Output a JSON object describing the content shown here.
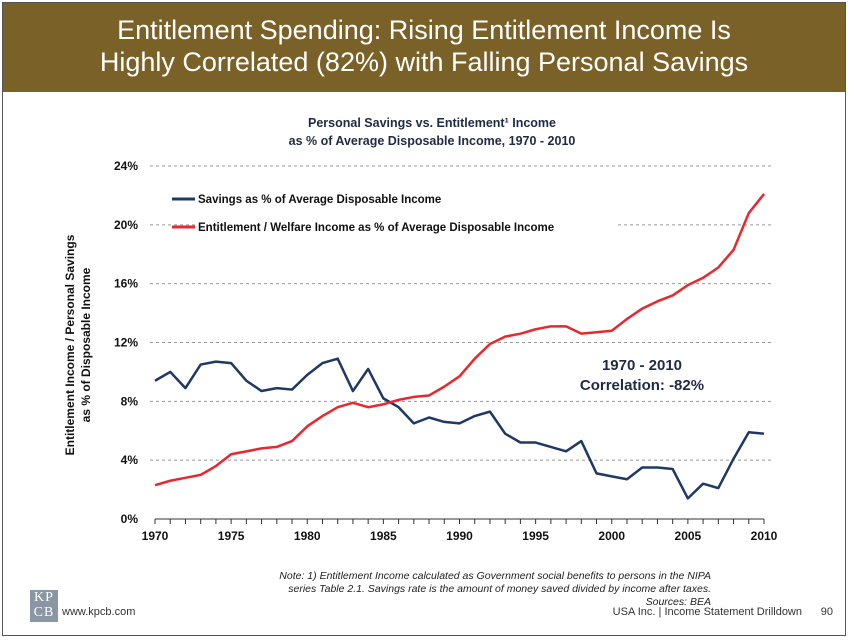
{
  "header": {
    "title_line1": "Entitlement Spending: Rising Entitlement Income Is",
    "title_line2": "Highly Correlated (82%) with Falling Personal Savings"
  },
  "chart_data": {
    "type": "line",
    "title_line1": "Personal Savings vs. Entitlement¹ Income",
    "title_line2": "as % of Average Disposable Income, 1970 - 2010",
    "ylabel_line1": "Entitlement Income / Personal Savings",
    "ylabel_line2": "as % of Disposable Income",
    "xlabel": "",
    "ylim": [
      0,
      24
    ],
    "xlim": [
      1970,
      2010
    ],
    "yticks": [
      0,
      4,
      8,
      12,
      16,
      20,
      24
    ],
    "ytick_labels": [
      "0%",
      "4%",
      "8%",
      "12%",
      "16%",
      "20%",
      "24%"
    ],
    "xticks": [
      1970,
      1975,
      1980,
      1985,
      1990,
      1995,
      2000,
      2005,
      2010
    ],
    "xtick_labels": [
      "1970",
      "1975",
      "1980",
      "1985",
      "1990",
      "1995",
      "2000",
      "2005",
      "2010"
    ],
    "grid": true,
    "legend_position": "top-left",
    "x": [
      1970,
      1971,
      1972,
      1973,
      1974,
      1975,
      1976,
      1977,
      1978,
      1979,
      1980,
      1981,
      1982,
      1983,
      1984,
      1985,
      1986,
      1987,
      1988,
      1989,
      1990,
      1991,
      1992,
      1993,
      1994,
      1995,
      1996,
      1997,
      1998,
      1999,
      2000,
      2001,
      2002,
      2003,
      2004,
      2005,
      2006,
      2007,
      2008,
      2009,
      2010
    ],
    "series": [
      {
        "name": "Savings as % of Average Disposable Income",
        "color": "#1f3864",
        "values": [
          9.4,
          10.0,
          8.9,
          10.5,
          10.7,
          10.6,
          9.4,
          8.7,
          8.9,
          8.8,
          9.8,
          10.6,
          10.9,
          8.7,
          10.2,
          8.2,
          7.6,
          6.5,
          6.9,
          6.6,
          6.5,
          7.0,
          7.3,
          5.8,
          5.2,
          5.2,
          4.9,
          4.6,
          5.3,
          3.1,
          2.9,
          2.7,
          3.5,
          3.5,
          3.4,
          1.4,
          2.4,
          2.1,
          4.1,
          5.9,
          5.8
        ]
      },
      {
        "name": "Entitlement / Welfare Income as % of Average Disposable Income",
        "color": "#e8282e",
        "values": [
          2.3,
          2.6,
          2.8,
          3.0,
          3.6,
          4.4,
          4.6,
          4.8,
          4.9,
          5.3,
          6.3,
          7.0,
          7.6,
          7.9,
          7.6,
          7.8,
          8.1,
          8.3,
          8.4,
          9.0,
          9.7,
          10.9,
          11.9,
          12.4,
          12.6,
          12.9,
          13.1,
          13.1,
          12.6,
          12.7,
          12.8,
          13.6,
          14.3,
          14.8,
          15.2,
          15.9,
          16.4,
          17.1,
          18.3,
          20.8,
          22.1
        ]
      }
    ],
    "annotation_line1": "1970 - 2010",
    "annotation_line2": "Correlation: -82%"
  },
  "footer": {
    "note_line1": "Note: 1) Entitlement Income calculated as Government social benefits to persons in the NIPA",
    "note_line2": "series Table 2.1. Savings rate is the amount of money saved divided by income after taxes.",
    "sources": "Sources: BEA",
    "logo_text_1": "KP",
    "logo_text_2": "CB",
    "url": "www.kpcb.com",
    "section": "USA Inc. | Income Statement Drilldown",
    "page_number": "90"
  }
}
